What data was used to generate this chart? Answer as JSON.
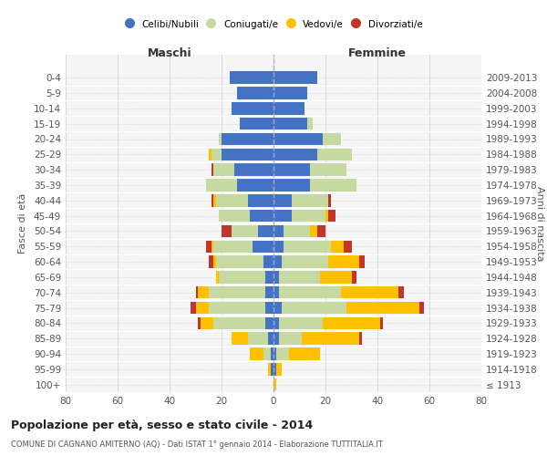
{
  "age_groups": [
    "100+",
    "95-99",
    "90-94",
    "85-89",
    "80-84",
    "75-79",
    "70-74",
    "65-69",
    "60-64",
    "55-59",
    "50-54",
    "45-49",
    "40-44",
    "35-39",
    "30-34",
    "25-29",
    "20-24",
    "15-19",
    "10-14",
    "5-9",
    "0-4"
  ],
  "birth_years": [
    "≤ 1913",
    "1914-1918",
    "1919-1923",
    "1924-1928",
    "1929-1933",
    "1934-1938",
    "1939-1943",
    "1944-1948",
    "1949-1953",
    "1954-1958",
    "1959-1963",
    "1964-1968",
    "1969-1973",
    "1974-1978",
    "1979-1983",
    "1984-1988",
    "1989-1993",
    "1994-1998",
    "1999-2003",
    "2004-2008",
    "2009-2013"
  ],
  "maschi": {
    "celibi": [
      0,
      1,
      1,
      2,
      3,
      3,
      3,
      3,
      4,
      8,
      6,
      9,
      10,
      14,
      15,
      20,
      20,
      13,
      16,
      14,
      17
    ],
    "coniugati": [
      0,
      0,
      3,
      8,
      20,
      22,
      22,
      18,
      18,
      15,
      10,
      12,
      12,
      12,
      8,
      4,
      1,
      0,
      0,
      0,
      0
    ],
    "vedovi": [
      0,
      1,
      5,
      6,
      5,
      5,
      4,
      1,
      1,
      1,
      0,
      0,
      1,
      0,
      0,
      1,
      0,
      0,
      0,
      0,
      0
    ],
    "divorziati": [
      0,
      0,
      0,
      0,
      1,
      2,
      1,
      0,
      2,
      2,
      4,
      0,
      1,
      0,
      1,
      0,
      0,
      0,
      0,
      0,
      0
    ]
  },
  "femmine": {
    "nubili": [
      0,
      1,
      1,
      2,
      2,
      3,
      2,
      2,
      3,
      4,
      4,
      7,
      7,
      14,
      14,
      17,
      19,
      13,
      12,
      13,
      17
    ],
    "coniugate": [
      0,
      0,
      5,
      9,
      17,
      25,
      24,
      16,
      18,
      18,
      10,
      13,
      14,
      18,
      14,
      13,
      7,
      2,
      0,
      0,
      0
    ],
    "vedove": [
      1,
      2,
      12,
      22,
      22,
      28,
      22,
      12,
      12,
      5,
      3,
      1,
      0,
      0,
      0,
      0,
      0,
      0,
      0,
      0,
      0
    ],
    "divorziate": [
      0,
      0,
      0,
      1,
      1,
      2,
      2,
      2,
      2,
      3,
      3,
      3,
      1,
      0,
      0,
      0,
      0,
      0,
      0,
      0,
      0
    ]
  },
  "colors": {
    "celibi": "#4472c4",
    "coniugati": "#c5d9a0",
    "vedovi": "#ffc000",
    "divorziati": "#c0372a"
  },
  "xlim": 80,
  "title": "Popolazione per età, sesso e stato civile - 2014",
  "subtitle": "COMUNE DI CAGNANO AMITERNO (AQ) - Dati ISTAT 1° gennaio 2014 - Elaborazione TUTTITALIA.IT",
  "ylabel_left": "Fasce di età",
  "ylabel_right": "Anni di nascita",
  "xlabel_maschi": "Maschi",
  "xlabel_femmine": "Femmine"
}
